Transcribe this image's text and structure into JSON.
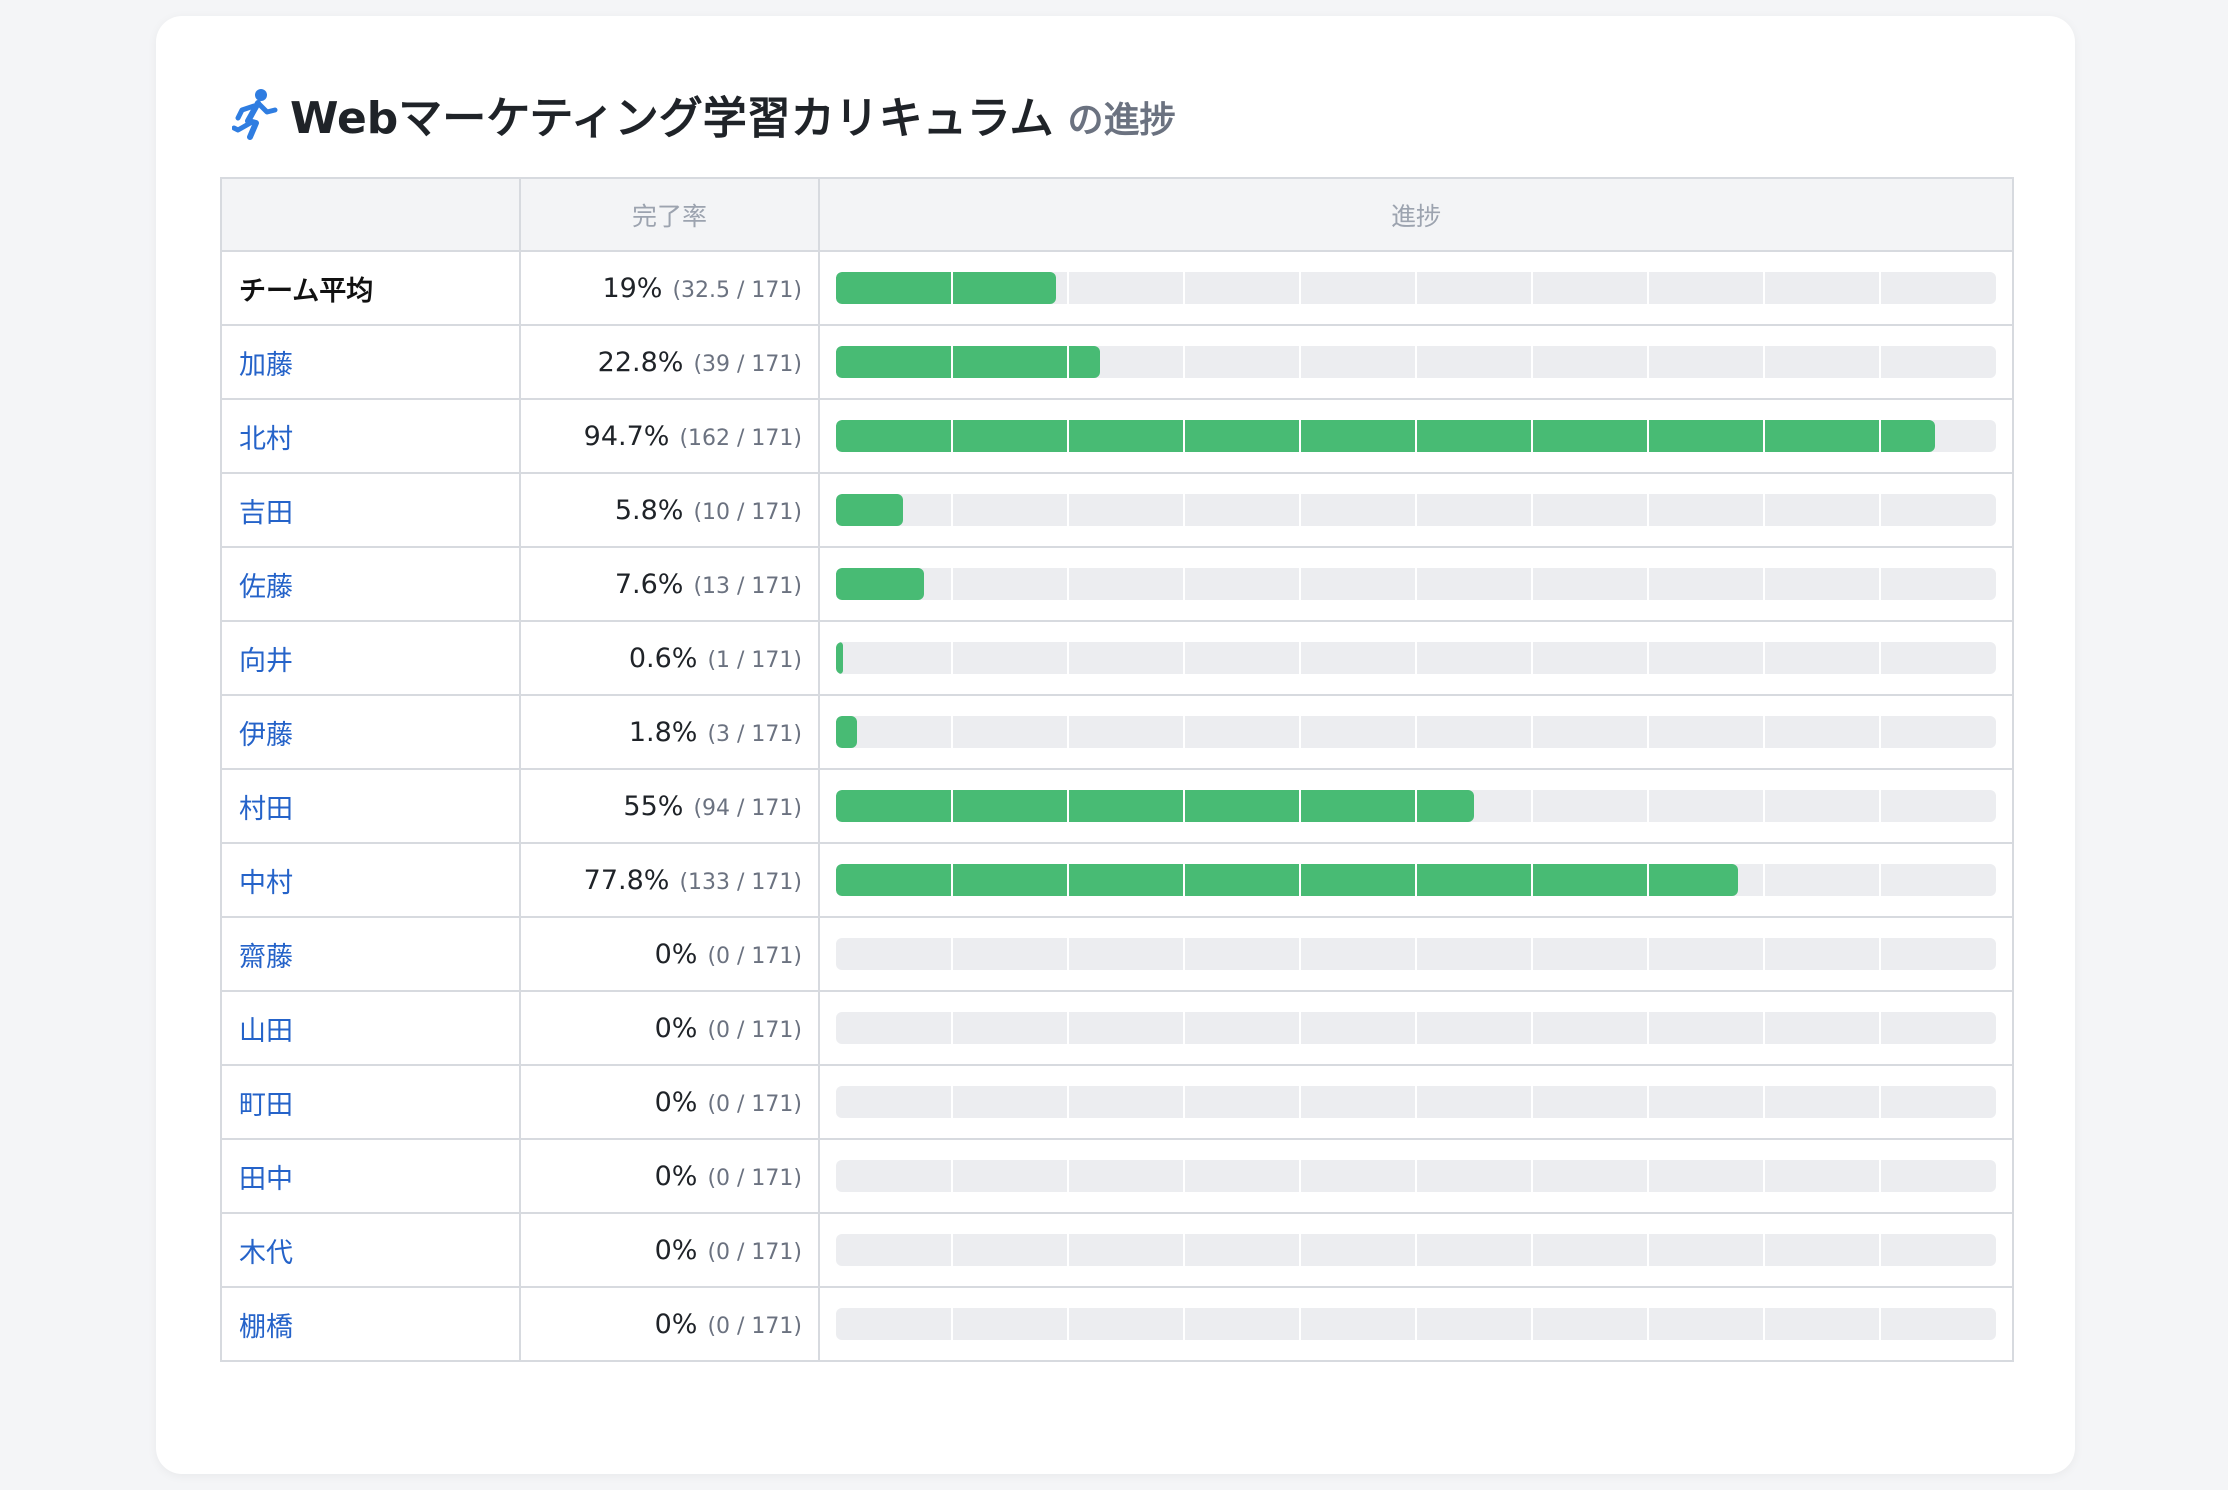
{
  "title": {
    "icon": "running-person-icon",
    "main": "Webマーケティング学習カリキュラム",
    "sub": "の進捗"
  },
  "table": {
    "headers": [
      "",
      "完了率",
      "進捗"
    ],
    "rows": [
      {
        "name": "チーム平均",
        "is_average": true,
        "percent": "19%",
        "count": "(32.5 / 171)",
        "progress": 0.19
      },
      {
        "name": "加藤",
        "percent": "22.8%",
        "count": "(39 / 171)",
        "progress": 0.228
      },
      {
        "name": "北村",
        "percent": "94.7%",
        "count": "(162 / 171)",
        "progress": 0.947
      },
      {
        "name": "吉田",
        "percent": "5.8%",
        "count": "(10 / 171)",
        "progress": 0.058
      },
      {
        "name": "佐藤",
        "percent": "7.6%",
        "count": "(13 / 171)",
        "progress": 0.076
      },
      {
        "name": "向井",
        "percent": "0.6%",
        "count": "(1 / 171)",
        "progress": 0.006
      },
      {
        "name": "伊藤",
        "percent": "1.8%",
        "count": "(3 / 171)",
        "progress": 0.018
      },
      {
        "name": "村田",
        "percent": "55%",
        "count": "(94 / 171)",
        "progress": 0.55
      },
      {
        "name": "中村",
        "percent": "77.8%",
        "count": "(133 / 171)",
        "progress": 0.778
      },
      {
        "name": "齋藤",
        "percent": "0%",
        "count": "(0 / 171)",
        "progress": 0
      },
      {
        "name": "山田",
        "percent": "0%",
        "count": "(0 / 171)",
        "progress": 0
      },
      {
        "name": "町田",
        "percent": "0%",
        "count": "(0 / 171)",
        "progress": 0
      },
      {
        "name": "田中",
        "percent": "0%",
        "count": "(0 / 171)",
        "progress": 0
      },
      {
        "name": "木代",
        "percent": "0%",
        "count": "(0 / 171)",
        "progress": 0
      },
      {
        "name": "棚橋",
        "percent": "0%",
        "count": "(0 / 171)",
        "progress": 0
      }
    ]
  },
  "colors": {
    "progress_fill": "#48bb74",
    "progress_track": "#ecedf0",
    "link": "#2563c9",
    "icon": "#2f7de1"
  }
}
